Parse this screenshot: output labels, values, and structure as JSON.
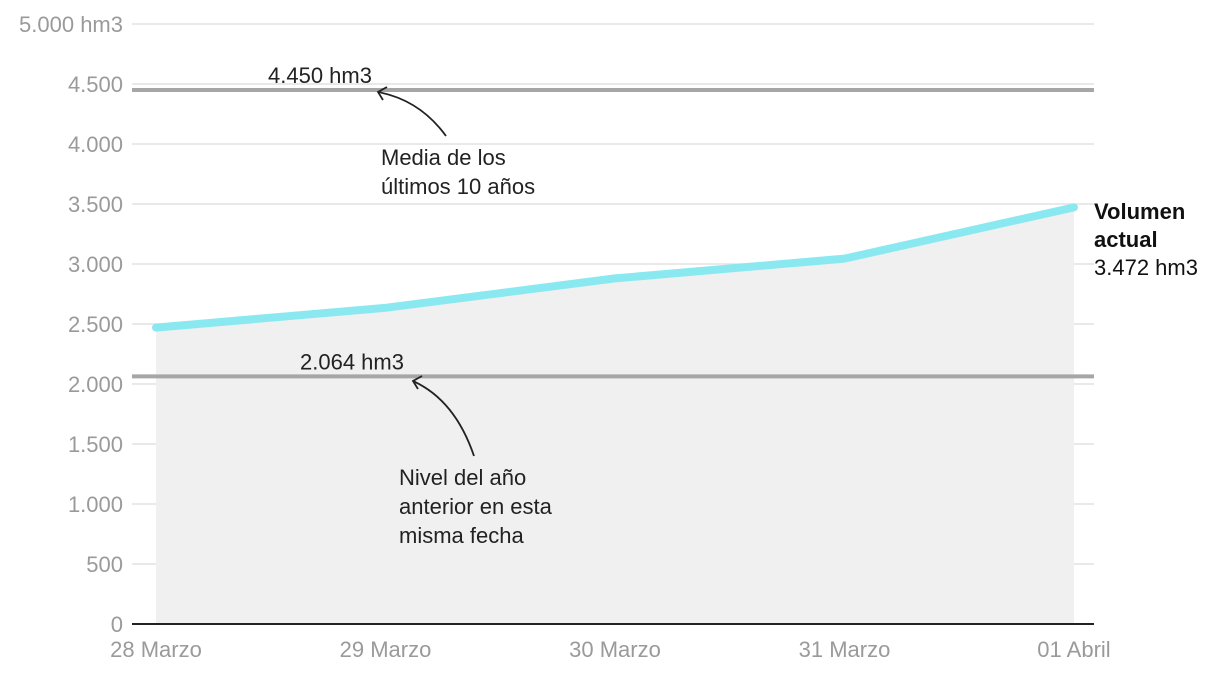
{
  "chart_data": {
    "type": "line",
    "categories": [
      "28 Marzo",
      "29 Marzo",
      "30 Marzo",
      "31 Marzo",
      "01 Abril"
    ],
    "series": [
      {
        "values": [
          2470,
          2635,
          2880,
          3045,
          3472
        ]
      }
    ],
    "y_ticks": [
      {
        "value": 0,
        "label": "0"
      },
      {
        "value": 500,
        "label": "500"
      },
      {
        "value": 1000,
        "label": "1.000"
      },
      {
        "value": 1500,
        "label": "1.500"
      },
      {
        "value": 2000,
        "label": "2.000"
      },
      {
        "value": 2500,
        "label": "2.500"
      },
      {
        "value": 3000,
        "label": "3.000"
      },
      {
        "value": 3500,
        "label": "3.500"
      },
      {
        "value": 4000,
        "label": "4.000"
      },
      {
        "value": 4500,
        "label": "4.500"
      },
      {
        "value": 5000,
        "label": "5.000 hm3"
      }
    ],
    "ylim": [
      0,
      5000
    ],
    "grid": true,
    "reference_lines": [
      {
        "value": 4450,
        "label": "4.450 hm3",
        "annotation": [
          "Media de los",
          "últimos 10 años"
        ]
      },
      {
        "value": 2064,
        "label": "2.064 hm3",
        "annotation": [
          "Nivel del año",
          "anterior en esta",
          "misma fecha"
        ]
      }
    ],
    "end_label": {
      "title": [
        "Volumen",
        "actual"
      ],
      "value": "3.472 hm3"
    },
    "colors": {
      "line": "#8ae9f0",
      "area": "#f0f0f0",
      "reference": "#a6a6a6",
      "grid": "#e2e2e2",
      "axis": "#222222"
    }
  }
}
